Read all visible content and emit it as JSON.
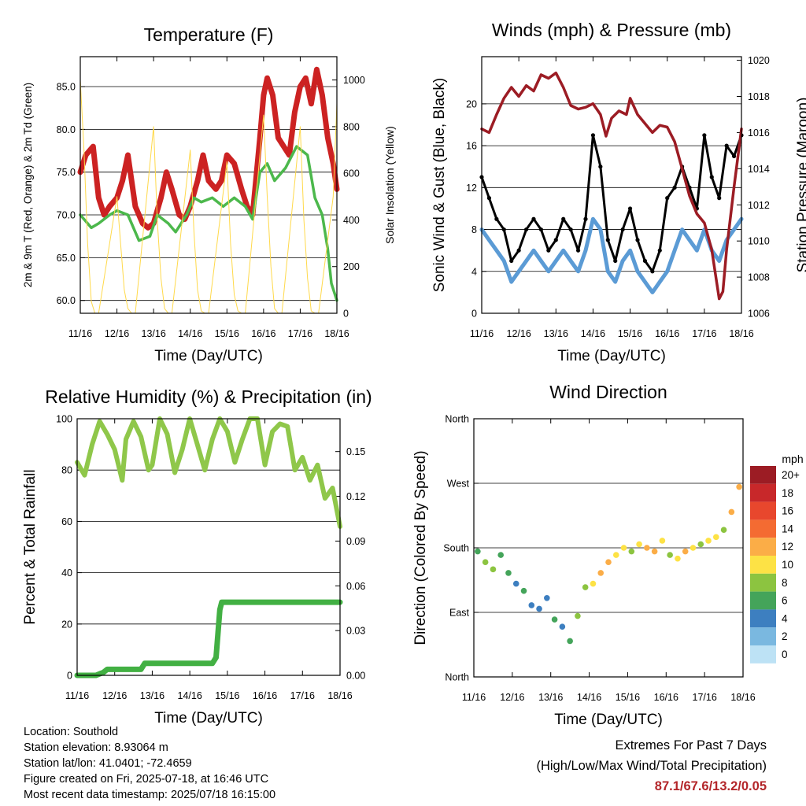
{
  "colors": {
    "temp2m": "#cc2222",
    "temp9m": "#f29a2e",
    "dewpoint": "#4cb84c",
    "solar": "#ffd94a",
    "wind": "#5b9bd5",
    "gust": "#000000",
    "pressure": "#9c1c24",
    "rh": "#8fc74a",
    "precip": "#42b043",
    "extremes": "#b3262a"
  },
  "wind_speed_colorbar": {
    "unit": "mph",
    "labels": [
      "20+",
      "18",
      "16",
      "14",
      "12",
      "10",
      "8",
      "6",
      "4",
      "2",
      "0"
    ],
    "colors": [
      "#9c1c24",
      "#c8282a",
      "#e8472d",
      "#f46b32",
      "#fbad47",
      "#fde245",
      "#8cc440",
      "#44a45a",
      "#3d7fc0",
      "#7ab8e0",
      "#bde2f5"
    ]
  },
  "chart_data": [
    {
      "type": "line",
      "title": "Temperature (F)",
      "xlabel": "Time (Day/UTC)",
      "ylabel": "2m & 9m T (Red, Orange) & 2m Td (Green)",
      "y2label": "Solar Insolation (Yellow)",
      "x_ticks": [
        "11/16",
        "12/16",
        "13/16",
        "14/16",
        "15/16",
        "16/16",
        "17/16",
        "18/16"
      ],
      "y_ticks": [
        "60.0",
        "65.0",
        "70.0",
        "75.0",
        "80.0",
        "85.0"
      ],
      "y2_ticks": [
        "0",
        "200",
        "400",
        "600",
        "800",
        "1000"
      ],
      "xlim": [
        0,
        7
      ],
      "ylim": [
        58.5,
        88.5
      ],
      "y2lim": [
        0,
        1100
      ],
      "grid": true,
      "series": [
        {
          "key": "temp2m",
          "x": [
            0,
            0.15,
            0.35,
            0.5,
            0.65,
            0.8,
            1.0,
            1.15,
            1.3,
            1.5,
            1.7,
            1.85,
            2.0,
            2.2,
            2.35,
            2.5,
            2.7,
            2.85,
            3.0,
            3.2,
            3.35,
            3.5,
            3.7,
            3.85,
            4.0,
            4.2,
            4.4,
            4.55,
            4.7,
            4.9,
            5.0,
            5.1,
            5.25,
            5.4,
            5.55,
            5.7,
            5.85,
            6.0,
            6.15,
            6.3,
            6.45,
            6.6,
            6.75,
            6.9,
            7.0
          ],
          "y": [
            75,
            77,
            78,
            72,
            70,
            71,
            72,
            74,
            77,
            71,
            69,
            68.5,
            69,
            72,
            75,
            73,
            70,
            69.5,
            71,
            74,
            77,
            74,
            73,
            74,
            77,
            76,
            73,
            71,
            70,
            79,
            84,
            86,
            84,
            79,
            78,
            77,
            82,
            85,
            86,
            83,
            87,
            84,
            79,
            76,
            73
          ]
        },
        {
          "key": "dewpoint",
          "x": [
            0,
            0.3,
            0.5,
            0.8,
            1.0,
            1.3,
            1.6,
            1.9,
            2.1,
            2.4,
            2.6,
            2.9,
            3.1,
            3.3,
            3.6,
            3.9,
            4.2,
            4.5,
            4.7,
            4.9,
            5.1,
            5.3,
            5.6,
            5.9,
            6.2,
            6.4,
            6.6,
            6.75,
            6.85,
            7.0
          ],
          "y": [
            70,
            68.5,
            69,
            70,
            70.5,
            70,
            67,
            67.5,
            70,
            69,
            68,
            70,
            72,
            71.5,
            72,
            71,
            72,
            71,
            69.5,
            75,
            76,
            74,
            75.5,
            78,
            77,
            72,
            70,
            66,
            62,
            60
          ]
        },
        {
          "key": "solar",
          "axis": "y2",
          "x": [
            0,
            0.1,
            0.2,
            0.3,
            0.4,
            0.5,
            1.0,
            1.1,
            1.2,
            1.3,
            1.4,
            1.5,
            2.0,
            2.1,
            2.2,
            2.3,
            2.4,
            2.5,
            3.0,
            3.1,
            3.2,
            3.3,
            3.4,
            3.5,
            4.0,
            4.1,
            4.2,
            4.3,
            4.4,
            4.5,
            5.0,
            5.1,
            5.2,
            5.3,
            5.4,
            5.5,
            6.0,
            6.1,
            6.2,
            6.3,
            6.4,
            6.5,
            6.9,
            7.0
          ],
          "y": [
            1000,
            700,
            300,
            50,
            0,
            0,
            500,
            300,
            100,
            20,
            0,
            0,
            800,
            400,
            150,
            20,
            0,
            0,
            700,
            350,
            100,
            10,
            0,
            0,
            650,
            300,
            80,
            10,
            0,
            0,
            850,
            500,
            200,
            20,
            0,
            0,
            800,
            400,
            150,
            10,
            0,
            0,
            500,
            900
          ]
        }
      ]
    },
    {
      "type": "line",
      "title": "Winds (mph) & Pressure (mb)",
      "xlabel": "Time (Day/UTC)",
      "ylabel": "Sonic Wind & Gust (Blue, Black)",
      "y2label": "Station Pressure (Maroon)",
      "x_ticks": [
        "11/16",
        "12/16",
        "13/16",
        "14/16",
        "15/16",
        "16/16",
        "17/16",
        "18/16"
      ],
      "y_ticks": [
        "0",
        "4",
        "8",
        "12",
        "16",
        "20"
      ],
      "y2_ticks": [
        "1006",
        "1008",
        "1010",
        "1012",
        "1014",
        "1016",
        "1018",
        "1020"
      ],
      "xlim": [
        0,
        7
      ],
      "ylim": [
        0,
        24.5
      ],
      "y2lim": [
        1006,
        1020.2
      ],
      "grid": true,
      "series": [
        {
          "key": "wind",
          "x": [
            0,
            0.2,
            0.4,
            0.6,
            0.8,
            1.0,
            1.2,
            1.4,
            1.6,
            1.8,
            2.0,
            2.2,
            2.4,
            2.6,
            2.8,
            3.0,
            3.2,
            3.4,
            3.6,
            3.8,
            4.0,
            4.2,
            4.4,
            4.6,
            4.8,
            5.0,
            5.2,
            5.4,
            5.6,
            5.8,
            6.0,
            6.2,
            6.4,
            6.6,
            6.8,
            7.0
          ],
          "y": [
            8,
            7,
            6,
            5,
            3,
            4,
            5,
            6,
            5,
            4,
            5,
            6,
            5,
            4,
            6,
            9,
            8,
            4,
            3,
            5,
            6,
            4,
            3,
            2,
            3,
            4,
            6,
            8,
            7,
            6,
            8,
            6,
            5,
            7,
            8,
            9
          ]
        },
        {
          "key": "gust",
          "x": [
            0,
            0.2,
            0.4,
            0.6,
            0.8,
            1.0,
            1.2,
            1.4,
            1.6,
            1.8,
            2.0,
            2.2,
            2.4,
            2.6,
            2.8,
            3.0,
            3.2,
            3.4,
            3.6,
            3.8,
            4.0,
            4.2,
            4.4,
            4.6,
            4.8,
            5.0,
            5.2,
            5.4,
            5.6,
            5.8,
            6.0,
            6.2,
            6.4,
            6.6,
            6.8,
            7.0
          ],
          "y": [
            13,
            11,
            9,
            8,
            5,
            6,
            8,
            9,
            8,
            6,
            7,
            9,
            8,
            6,
            9,
            17,
            14,
            7,
            5,
            8,
            10,
            7,
            5,
            4,
            6,
            11,
            12,
            14,
            12,
            10,
            17,
            13,
            11,
            16,
            15,
            17
          ]
        },
        {
          "key": "pressure",
          "axis": "y2",
          "x": [
            0,
            0.2,
            0.4,
            0.6,
            0.8,
            1.0,
            1.2,
            1.4,
            1.6,
            1.8,
            2.0,
            2.2,
            2.4,
            2.6,
            2.8,
            3.0,
            3.2,
            3.35,
            3.5,
            3.7,
            3.9,
            4.0,
            4.2,
            4.4,
            4.6,
            4.8,
            5.0,
            5.2,
            5.4,
            5.6,
            5.8,
            6.0,
            6.2,
            6.4,
            6.5,
            6.6,
            6.8,
            7.0
          ],
          "y": [
            1016.2,
            1016.0,
            1017.0,
            1017.9,
            1018.5,
            1018.0,
            1018.6,
            1018.3,
            1019.2,
            1019.0,
            1019.3,
            1018.5,
            1017.5,
            1017.3,
            1017.4,
            1017.6,
            1017.0,
            1015.8,
            1016.8,
            1017.2,
            1017.0,
            1017.9,
            1017.0,
            1016.5,
            1016.0,
            1016.4,
            1016.3,
            1015.5,
            1014.0,
            1012.5,
            1011.5,
            1011.0,
            1009.5,
            1006.8,
            1007.2,
            1009.5,
            1013.0,
            1016.2
          ]
        }
      ]
    },
    {
      "type": "line",
      "title": "Relative Humidity (%) & Precipitation (in)",
      "xlabel": "Time (Day/UTC)",
      "ylabel": "Percent & Total Rainfall",
      "x_ticks": [
        "11/16",
        "12/16",
        "13/16",
        "14/16",
        "15/16",
        "16/16",
        "17/16",
        "18/16"
      ],
      "y_ticks": [
        "0",
        "20",
        "40",
        "60",
        "80",
        "100"
      ],
      "y2_ticks": [
        "0.00",
        "0.03",
        "0.06",
        "0.09",
        "0.12",
        "0.15"
      ],
      "xlim": [
        0,
        7
      ],
      "ylim": [
        0,
        100
      ],
      "y2lim": [
        0,
        0.172
      ],
      "grid": true,
      "series": [
        {
          "key": "rh",
          "x": [
            0,
            0.2,
            0.4,
            0.6,
            0.8,
            1.0,
            1.2,
            1.3,
            1.5,
            1.7,
            1.9,
            2.0,
            2.2,
            2.4,
            2.6,
            2.8,
            3.0,
            3.2,
            3.4,
            3.6,
            3.8,
            4.0,
            4.2,
            4.4,
            4.6,
            4.8,
            5.0,
            5.2,
            5.4,
            5.6,
            5.8,
            6.0,
            6.2,
            6.4,
            6.6,
            6.8,
            7.0
          ],
          "y": [
            83,
            78,
            90,
            99,
            94,
            88,
            76,
            92,
            99,
            93,
            80,
            82,
            100,
            94,
            79,
            88,
            100,
            90,
            80,
            92,
            100,
            95,
            83,
            92,
            100,
            100,
            82,
            95,
            98,
            97,
            80,
            85,
            76,
            82,
            69,
            73,
            58
          ]
        },
        {
          "key": "precip",
          "axis": "y2",
          "x": [
            0,
            0.5,
            0.7,
            0.8,
            1.7,
            1.8,
            3.6,
            3.7,
            3.75,
            3.8,
            3.85,
            4.0,
            7.0
          ],
          "y": [
            0,
            0,
            0.002,
            0.004,
            0.004,
            0.008,
            0.008,
            0.012,
            0.028,
            0.044,
            0.049,
            0.049,
            0.049
          ]
        }
      ]
    },
    {
      "type": "scatter",
      "title": "Wind Direction",
      "xlabel": "Time (Day/UTC)",
      "ylabel": "Direction (Colored By Speed)",
      "x_ticks": [
        "11/16",
        "12/16",
        "13/16",
        "14/16",
        "15/16",
        "16/16",
        "17/16",
        "18/16"
      ],
      "y_ticks": [
        "North",
        "East",
        "South",
        "West",
        "North"
      ],
      "xlim": [
        0,
        7
      ],
      "ylim": [
        0,
        360
      ],
      "grid": true,
      "series": [
        {
          "key": "wind_direction",
          "x": [
            0.1,
            0.3,
            0.5,
            0.7,
            0.9,
            1.1,
            1.3,
            1.5,
            1.7,
            1.9,
            2.1,
            2.3,
            2.5,
            2.7,
            2.9,
            3.1,
            3.3,
            3.5,
            3.7,
            3.9,
            4.1,
            4.3,
            4.5,
            4.7,
            4.9,
            5.1,
            5.3,
            5.5,
            5.7,
            5.9,
            6.1,
            6.3,
            6.5,
            6.7,
            6.9
          ],
          "y": [
            175,
            160,
            150,
            170,
            145,
            130,
            120,
            100,
            95,
            110,
            80,
            70,
            50,
            85,
            125,
            130,
            145,
            160,
            170,
            180,
            175,
            185,
            180,
            175,
            190,
            170,
            165,
            175,
            180,
            185,
            190,
            195,
            205,
            230,
            265
          ],
          "speed": [
            6,
            7,
            8,
            6,
            5,
            4,
            5,
            4,
            3,
            4,
            5,
            4,
            5,
            7,
            8,
            10,
            11,
            12,
            10,
            9,
            8,
            10,
            12,
            11,
            9,
            8,
            10,
            11,
            9,
            8,
            9,
            10,
            8,
            11,
            12
          ]
        }
      ]
    }
  ],
  "footer": {
    "location": "Location: Southold",
    "elevation": "Station elevation: 8.93064 m",
    "latlon": "Station lat/lon: 41.0401; -72.4659",
    "created": "Figure created on Fri, 2025-07-18, at 16:46 UTC",
    "timestamp": "Most recent data timestamp: 2025/07/18 16:15:00",
    "extremes_title": "Extremes For Past 7 Days",
    "extremes_subtitle": "(High/Low/Max Wind/Total Precipitation)",
    "extremes_values": "87.1/67.6/13.2/0.05"
  }
}
